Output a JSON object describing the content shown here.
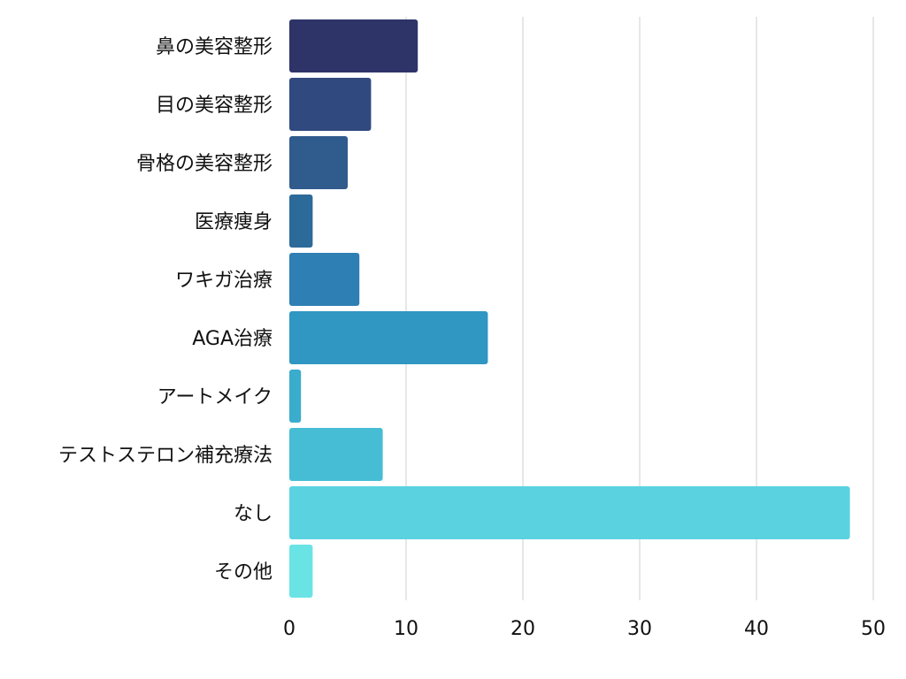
{
  "chart_data": {
    "type": "bar",
    "orientation": "horizontal",
    "title": "",
    "xlabel": "",
    "ylabel": "",
    "xlim": [
      0,
      50
    ],
    "x_ticks": [
      0,
      10,
      20,
      30,
      40,
      50
    ],
    "grid": true,
    "legend": "none",
    "categories": [
      "鼻の美容整形",
      "目の美容整形",
      "骨格の美容整形",
      "医療痩身",
      "ワキガ治療",
      "AGA治療",
      "アートメイク",
      "テストステロン補充療法",
      "なし",
      "その他"
    ],
    "values": [
      11,
      7,
      5,
      2,
      6,
      17,
      1,
      8,
      48,
      2
    ],
    "colors": [
      "#2e3368",
      "#30497f",
      "#2f5b8d",
      "#2c6a99",
      "#2e7fb4",
      "#3096c2",
      "#3aaccc",
      "#46bdd5",
      "#5ad2e0",
      "#6ae3e5"
    ]
  }
}
